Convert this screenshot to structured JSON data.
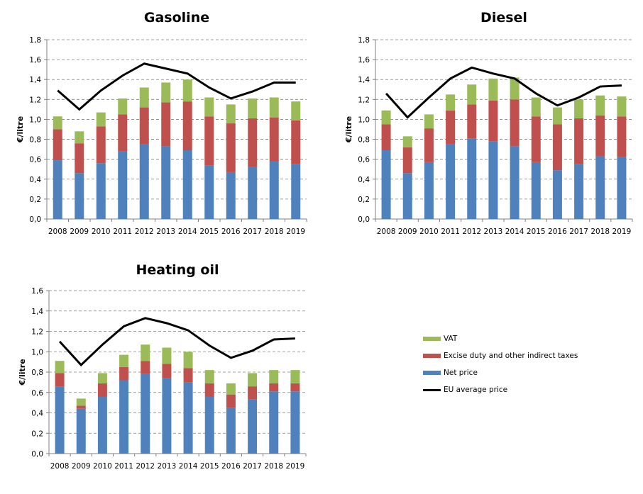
{
  "chart_data": [
    {
      "type": "bar",
      "stacked": true,
      "title": "Gasoline",
      "xlabel": "",
      "ylabel": "€/litre",
      "ylim": [
        0,
        1.8
      ],
      "yticks": [
        "0,0",
        "0,2",
        "0,4",
        "0,6",
        "0,8",
        "1,0",
        "1,2",
        "1,4",
        "1,6",
        "1,8"
      ],
      "ytick_values": [
        0,
        0.2,
        0.4,
        0.6,
        0.8,
        1.0,
        1.2,
        1.4,
        1.6,
        1.8
      ],
      "grid": true,
      "categories": [
        "2008",
        "2009",
        "2010",
        "2011",
        "2012",
        "2013",
        "2014",
        "2015",
        "2016",
        "2017",
        "2018",
        "2019"
      ],
      "series": [
        {
          "name": "Net price",
          "kind": "bar",
          "color": "#4F81BD",
          "values": [
            0.59,
            0.46,
            0.56,
            0.68,
            0.75,
            0.73,
            0.69,
            0.54,
            0.47,
            0.52,
            0.58,
            0.55
          ]
        },
        {
          "name": "Excise duty and other indirect taxes",
          "kind": "bar",
          "color": "#C0504D",
          "values": [
            0.31,
            0.3,
            0.37,
            0.37,
            0.37,
            0.44,
            0.49,
            0.49,
            0.49,
            0.49,
            0.44,
            0.44
          ]
        },
        {
          "name": "VAT",
          "kind": "bar",
          "color": "#9BBB59",
          "values": [
            0.13,
            0.12,
            0.14,
            0.16,
            0.2,
            0.2,
            0.22,
            0.19,
            0.19,
            0.2,
            0.2,
            0.19
          ]
        },
        {
          "name": "EU average price",
          "kind": "line",
          "color": "#000000",
          "values": [
            1.29,
            1.1,
            1.29,
            1.44,
            1.56,
            1.51,
            1.46,
            1.32,
            1.21,
            1.28,
            1.37,
            1.37
          ]
        }
      ]
    },
    {
      "type": "bar",
      "stacked": true,
      "title": "Diesel",
      "xlabel": "",
      "ylabel": "€/litre",
      "ylim": [
        0,
        1.8
      ],
      "yticks": [
        "0,0",
        "0,2",
        "0,4",
        "0,6",
        "0,8",
        "1,0",
        "1,2",
        "1,4",
        "1,6",
        "1,8"
      ],
      "ytick_values": [
        0,
        0.2,
        0.4,
        0.6,
        0.8,
        1.0,
        1.2,
        1.4,
        1.6,
        1.8
      ],
      "grid": true,
      "categories": [
        "2008",
        "2009",
        "2010",
        "2011",
        "2012",
        "2013",
        "2014",
        "2015",
        "2016",
        "2017",
        "2018",
        "2019"
      ],
      "series": [
        {
          "name": "Net price",
          "kind": "bar",
          "color": "#4F81BD",
          "values": [
            0.69,
            0.46,
            0.57,
            0.75,
            0.81,
            0.78,
            0.73,
            0.57,
            0.49,
            0.55,
            0.63,
            0.62
          ]
        },
        {
          "name": "Excise duty and other indirect taxes",
          "kind": "bar",
          "color": "#C0504D",
          "values": [
            0.26,
            0.26,
            0.34,
            0.34,
            0.34,
            0.41,
            0.47,
            0.46,
            0.46,
            0.46,
            0.41,
            0.41
          ]
        },
        {
          "name": "VAT",
          "kind": "bar",
          "color": "#9BBB59",
          "values": [
            0.14,
            0.11,
            0.14,
            0.16,
            0.2,
            0.22,
            0.22,
            0.19,
            0.17,
            0.19,
            0.2,
            0.2
          ]
        },
        {
          "name": "EU average price",
          "kind": "line",
          "color": "#000000",
          "values": [
            1.26,
            1.02,
            1.22,
            1.41,
            1.52,
            1.46,
            1.41,
            1.26,
            1.14,
            1.22,
            1.33,
            1.34
          ]
        }
      ]
    },
    {
      "type": "bar",
      "stacked": true,
      "title": "Heating oil",
      "xlabel": "",
      "ylabel": "€/litre",
      "ylim": [
        0,
        1.6
      ],
      "yticks": [
        "0,0",
        "0,2",
        "0,4",
        "0,6",
        "0,8",
        "1,0",
        "1,2",
        "1,4",
        "1,6"
      ],
      "ytick_values": [
        0,
        0.2,
        0.4,
        0.6,
        0.8,
        1.0,
        1.2,
        1.4,
        1.6
      ],
      "grid": true,
      "categories": [
        "2008",
        "2009",
        "2010",
        "2011",
        "2012",
        "2013",
        "2014",
        "2015",
        "2016",
        "2017",
        "2018",
        "2019"
      ],
      "series": [
        {
          "name": "Net price",
          "kind": "bar",
          "color": "#4F81BD",
          "values": [
            0.66,
            0.44,
            0.56,
            0.72,
            0.78,
            0.74,
            0.7,
            0.56,
            0.45,
            0.53,
            0.61,
            0.61
          ]
        },
        {
          "name": "Excise duty and other indirect taxes",
          "kind": "bar",
          "color": "#C0504D",
          "values": [
            0.13,
            0.03,
            0.13,
            0.13,
            0.13,
            0.14,
            0.14,
            0.13,
            0.13,
            0.13,
            0.08,
            0.08
          ]
        },
        {
          "name": "VAT",
          "kind": "bar",
          "color": "#9BBB59",
          "values": [
            0.12,
            0.07,
            0.1,
            0.12,
            0.16,
            0.16,
            0.16,
            0.13,
            0.11,
            0.13,
            0.13,
            0.13
          ]
        },
        {
          "name": "EU average price",
          "kind": "line",
          "color": "#000000",
          "values": [
            1.1,
            0.87,
            1.07,
            1.25,
            1.33,
            1.28,
            1.21,
            1.06,
            0.94,
            1.01,
            1.12,
            1.13
          ]
        }
      ]
    }
  ],
  "legend": {
    "placement": "bottom-right",
    "items": [
      {
        "label": "VAT",
        "color": "#9BBB59",
        "kind": "bar"
      },
      {
        "label": "Excise duty and other indirect taxes",
        "color": "#C0504D",
        "kind": "bar"
      },
      {
        "label": "Net price",
        "color": "#4F81BD",
        "kind": "bar"
      },
      {
        "label": "EU average price",
        "color": "#000000",
        "kind": "line"
      }
    ]
  }
}
